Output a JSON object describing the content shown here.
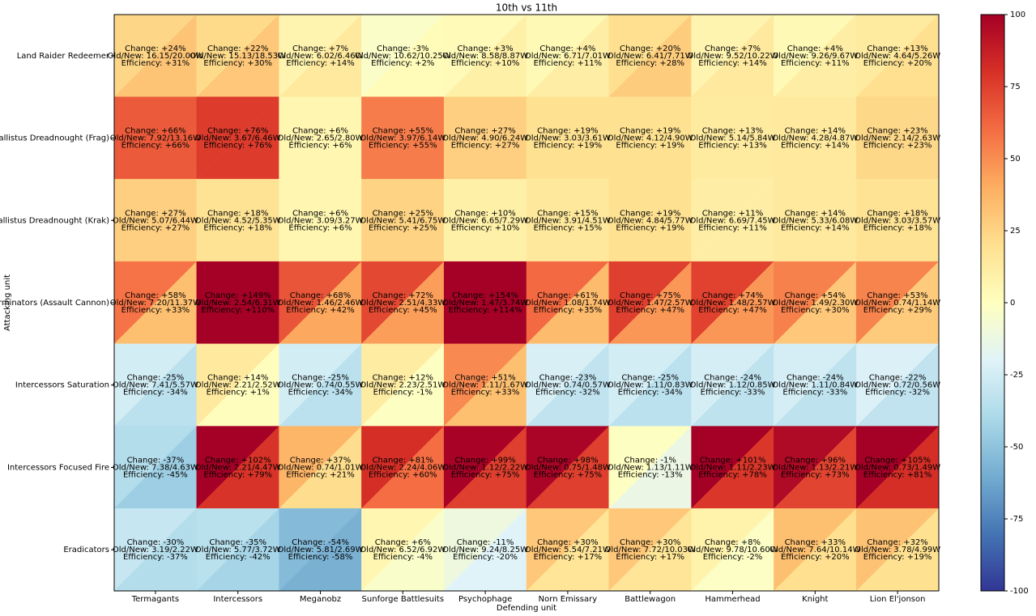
{
  "chart_data": {
    "type": "split-heatmap",
    "title": "10th vs 11th",
    "x_label": "Defending unit",
    "y_label": "Attacking unit",
    "colormap": "RdYlBu_r",
    "clim": [
      -100,
      100
    ],
    "cticks": [
      -100,
      -75,
      -50,
      -25,
      0,
      25,
      50,
      75,
      100
    ],
    "x_categories": [
      "Termagants",
      "Intercessors",
      "Meganobz",
      "Sunforge Battlesuits",
      "Psychophage",
      "Norn Emissary",
      "Battlewagon",
      "Hammerhead",
      "Knight",
      "Lion El'jonson"
    ],
    "y_categories": [
      "Land Raider Redeemer",
      "Ballistus Dreadnought (Frag)",
      "Ballistus Dreadnought (Krak)",
      "Terminators (Assault Cannon)",
      "Intercessors Saturation",
      "Intercessors Focused Fire",
      "Eradicators"
    ],
    "rows": [
      [
        {
          "change": 24,
          "change_label": "Change: +24%",
          "old_new": "Old/New: 16.15/20.00W",
          "efficiency": 31,
          "efficiency_label": "Efficiency: +31%"
        },
        {
          "change": 22,
          "change_label": "Change: +22%",
          "old_new": "Old/New: 15.13/18.53W",
          "efficiency": 30,
          "efficiency_label": "Efficiency: +30%"
        },
        {
          "change": 7,
          "change_label": "Change: +7%",
          "old_new": "Old/New: 6.02/6.46W",
          "efficiency": 14,
          "efficiency_label": "Efficiency: +14%"
        },
        {
          "change": -3,
          "change_label": "Change: -3%",
          "old_new": "Old/New: 10.62/10.25W",
          "efficiency": 2,
          "efficiency_label": "Efficiency: +2%"
        },
        {
          "change": 3,
          "change_label": "Change: +3%",
          "old_new": "Old/New: 8.58/8.87W",
          "efficiency": 10,
          "efficiency_label": "Efficiency: +10%"
        },
        {
          "change": 4,
          "change_label": "Change: +4%",
          "old_new": "Old/New: 6.71/7.01W",
          "efficiency": 11,
          "efficiency_label": "Efficiency: +11%"
        },
        {
          "change": 20,
          "change_label": "Change: +20%",
          "old_new": "Old/New: 6.41/7.71W",
          "efficiency": 28,
          "efficiency_label": "Efficiency: +28%"
        },
        {
          "change": 7,
          "change_label": "Change: +7%",
          "old_new": "Old/New: 9.52/10.22W",
          "efficiency": 14,
          "efficiency_label": "Efficiency: +14%"
        },
        {
          "change": 4,
          "change_label": "Change: +4%",
          "old_new": "Old/New: 9.26/9.67W",
          "efficiency": 11,
          "efficiency_label": "Efficiency: +11%"
        },
        {
          "change": 13,
          "change_label": "Change: +13%",
          "old_new": "Old/New: 4.64/5.26W",
          "efficiency": 20,
          "efficiency_label": "Efficiency: +20%"
        }
      ],
      [
        {
          "change": 66,
          "change_label": "Change: +66%",
          "old_new": "Old/New: 7.92/13.16W",
          "efficiency": 66,
          "efficiency_label": "Efficiency: +66%"
        },
        {
          "change": 76,
          "change_label": "Change: +76%",
          "old_new": "Old/New: 3.67/6.46W",
          "efficiency": 76,
          "efficiency_label": "Efficiency: +76%"
        },
        {
          "change": 6,
          "change_label": "Change: +6%",
          "old_new": "Old/New: 2.65/2.80W",
          "efficiency": 6,
          "efficiency_label": "Efficiency: +6%"
        },
        {
          "change": 55,
          "change_label": "Change: +55%",
          "old_new": "Old/New: 3.97/6.14W",
          "efficiency": 55,
          "efficiency_label": "Efficiency: +55%"
        },
        {
          "change": 27,
          "change_label": "Change: +27%",
          "old_new": "Old/New: 4.90/6.24W",
          "efficiency": 27,
          "efficiency_label": "Efficiency: +27%"
        },
        {
          "change": 19,
          "change_label": "Change: +19%",
          "old_new": "Old/New: 3.03/3.61W",
          "efficiency": 19,
          "efficiency_label": "Efficiency: +19%"
        },
        {
          "change": 19,
          "change_label": "Change: +19%",
          "old_new": "Old/New: 4.12/4.90W",
          "efficiency": 19,
          "efficiency_label": "Efficiency: +19%"
        },
        {
          "change": 13,
          "change_label": "Change: +13%",
          "old_new": "Old/New: 5.14/5.84W",
          "efficiency": 13,
          "efficiency_label": "Efficiency: +13%"
        },
        {
          "change": 14,
          "change_label": "Change: +14%",
          "old_new": "Old/New: 4.28/4.87W",
          "efficiency": 14,
          "efficiency_label": "Efficiency: +14%"
        },
        {
          "change": 23,
          "change_label": "Change: +23%",
          "old_new": "Old/New: 2.14/2.63W",
          "efficiency": 23,
          "efficiency_label": "Efficiency: +23%"
        }
      ],
      [
        {
          "change": 27,
          "change_label": "Change: +27%",
          "old_new": "Old/New: 5.07/6.44W",
          "efficiency": 27,
          "efficiency_label": "Efficiency: +27%"
        },
        {
          "change": 18,
          "change_label": "Change: +18%",
          "old_new": "Old/New: 4.52/5.35W",
          "efficiency": 18,
          "efficiency_label": "Efficiency: +18%"
        },
        {
          "change": 6,
          "change_label": "Change: +6%",
          "old_new": "Old/New: 3.09/3.27W",
          "efficiency": 6,
          "efficiency_label": "Efficiency: +6%"
        },
        {
          "change": 25,
          "change_label": "Change: +25%",
          "old_new": "Old/New: 5.41/6.75W",
          "efficiency": 25,
          "efficiency_label": "Efficiency: +25%"
        },
        {
          "change": 10,
          "change_label": "Change: +10%",
          "old_new": "Old/New: 6.65/7.29W",
          "efficiency": 10,
          "efficiency_label": "Efficiency: +10%"
        },
        {
          "change": 15,
          "change_label": "Change: +15%",
          "old_new": "Old/New: 3.91/4.51W",
          "efficiency": 15,
          "efficiency_label": "Efficiency: +15%"
        },
        {
          "change": 19,
          "change_label": "Change: +19%",
          "old_new": "Old/New: 4.84/5.77W",
          "efficiency": 19,
          "efficiency_label": "Efficiency: +19%"
        },
        {
          "change": 11,
          "change_label": "Change: +11%",
          "old_new": "Old/New: 6.69/7.45W",
          "efficiency": 11,
          "efficiency_label": "Efficiency: +11%"
        },
        {
          "change": 14,
          "change_label": "Change: +14%",
          "old_new": "Old/New: 5.33/6.08W",
          "efficiency": 14,
          "efficiency_label": "Efficiency: +14%"
        },
        {
          "change": 18,
          "change_label": "Change: +18%",
          "old_new": "Old/New: 3.03/3.57W",
          "efficiency": 18,
          "efficiency_label": "Efficiency: +18%"
        }
      ],
      [
        {
          "change": 58,
          "change_label": "Change: +58%",
          "old_new": "Old/New: 7.20/11.37W",
          "efficiency": 33,
          "efficiency_label": "Efficiency: +33%"
        },
        {
          "change": 149,
          "change_label": "Change: +149%",
          "old_new": "Old/New: 2.54/6.31W",
          "efficiency": 110,
          "efficiency_label": "Efficiency: +110%"
        },
        {
          "change": 68,
          "change_label": "Change: +68%",
          "old_new": "Old/New: 1.46/2.46W",
          "efficiency": 42,
          "efficiency_label": "Efficiency: +42%"
        },
        {
          "change": 72,
          "change_label": "Change: +72%",
          "old_new": "Old/New: 2.51/4.33W",
          "efficiency": 45,
          "efficiency_label": "Efficiency: +45%"
        },
        {
          "change": 154,
          "change_label": "Change: +154%",
          "old_new": "Old/New: 1.47/3.74W",
          "efficiency": 114,
          "efficiency_label": "Efficiency: +114%"
        },
        {
          "change": 61,
          "change_label": "Change: +61%",
          "old_new": "Old/New: 1.08/1.74W",
          "efficiency": 35,
          "efficiency_label": "Efficiency: +35%"
        },
        {
          "change": 75,
          "change_label": "Change: +75%",
          "old_new": "Old/New: 1.47/2.57W",
          "efficiency": 47,
          "efficiency_label": "Efficiency: +47%"
        },
        {
          "change": 74,
          "change_label": "Change: +74%",
          "old_new": "Old/New: 1.48/2.57W",
          "efficiency": 47,
          "efficiency_label": "Efficiency: +47%"
        },
        {
          "change": 54,
          "change_label": "Change: +54%",
          "old_new": "Old/New: 1.49/2.30W",
          "efficiency": 30,
          "efficiency_label": "Efficiency: +30%"
        },
        {
          "change": 53,
          "change_label": "Change: +53%",
          "old_new": "Old/New: 0.74/1.14W",
          "efficiency": 29,
          "efficiency_label": "Efficiency: +29%"
        }
      ],
      [
        {
          "change": -25,
          "change_label": "Change: -25%",
          "old_new": "Old/New: 7.41/5.57W",
          "efficiency": -34,
          "efficiency_label": "Efficiency: -34%"
        },
        {
          "change": 14,
          "change_label": "Change: +14%",
          "old_new": "Old/New: 2.21/2.52W",
          "efficiency": 1,
          "efficiency_label": "Efficiency: +1%"
        },
        {
          "change": -25,
          "change_label": "Change: -25%",
          "old_new": "Old/New: 0.74/0.55W",
          "efficiency": -34,
          "efficiency_label": "Efficiency: -34%"
        },
        {
          "change": 12,
          "change_label": "Change: +12%",
          "old_new": "Old/New: 2.23/2.51W",
          "efficiency": -1,
          "efficiency_label": "Efficiency: -1%"
        },
        {
          "change": 51,
          "change_label": "Change: +51%",
          "old_new": "Old/New: 1.11/1.67W",
          "efficiency": 33,
          "efficiency_label": "Efficiency: +33%"
        },
        {
          "change": -23,
          "change_label": "Change: -23%",
          "old_new": "Old/New: 0.74/0.57W",
          "efficiency": -32,
          "efficiency_label": "Efficiency: -32%"
        },
        {
          "change": -25,
          "change_label": "Change: -25%",
          "old_new": "Old/New: 1.11/0.83W",
          "efficiency": -34,
          "efficiency_label": "Efficiency: -34%"
        },
        {
          "change": -24,
          "change_label": "Change: -24%",
          "old_new": "Old/New: 1.12/0.85W",
          "efficiency": -33,
          "efficiency_label": "Efficiency: -33%"
        },
        {
          "change": -24,
          "change_label": "Change: -24%",
          "old_new": "Old/New: 1.11/0.84W",
          "efficiency": -33,
          "efficiency_label": "Efficiency: -33%"
        },
        {
          "change": -22,
          "change_label": "Change: -22%",
          "old_new": "Old/New: 0.72/0.56W",
          "efficiency": -32,
          "efficiency_label": "Efficiency: -32%"
        }
      ],
      [
        {
          "change": -37,
          "change_label": "Change: -37%",
          "old_new": "Old/New: 7.38/4.63W",
          "efficiency": -45,
          "efficiency_label": "Efficiency: -45%"
        },
        {
          "change": 102,
          "change_label": "Change: +102%",
          "old_new": "Old/New: 2.21/4.47W",
          "efficiency": 79,
          "efficiency_label": "Efficiency: +79%"
        },
        {
          "change": 37,
          "change_label": "Change: +37%",
          "old_new": "Old/New: 0.74/1.01W",
          "efficiency": 21,
          "efficiency_label": "Efficiency: +21%"
        },
        {
          "change": 81,
          "change_label": "Change: +81%",
          "old_new": "Old/New: 2.24/4.06W",
          "efficiency": 60,
          "efficiency_label": "Efficiency: +60%"
        },
        {
          "change": 99,
          "change_label": "Change: +99%",
          "old_new": "Old/New: 1.12/2.22W",
          "efficiency": 75,
          "efficiency_label": "Efficiency: +75%"
        },
        {
          "change": 98,
          "change_label": "Change: +98%",
          "old_new": "Old/New: 0.75/1.48W",
          "efficiency": 75,
          "efficiency_label": "Efficiency: +75%"
        },
        {
          "change": -1,
          "change_label": "Change: -1%",
          "old_new": "Old/New: 1.13/1.11W",
          "efficiency": -13,
          "efficiency_label": "Efficiency: -13%"
        },
        {
          "change": 101,
          "change_label": "Change: +101%",
          "old_new": "Old/New: 1.11/2.23W",
          "efficiency": 78,
          "efficiency_label": "Efficiency: +78%"
        },
        {
          "change": 96,
          "change_label": "Change: +96%",
          "old_new": "Old/New: 1.13/2.21W",
          "efficiency": 73,
          "efficiency_label": "Efficiency: +73%"
        },
        {
          "change": 105,
          "change_label": "Change: +105%",
          "old_new": "Old/New: 0.73/1.49W",
          "efficiency": 81,
          "efficiency_label": "Efficiency: +81%"
        }
      ],
      [
        {
          "change": -30,
          "change_label": "Change: -30%",
          "old_new": "Old/New: 3.19/2.22W",
          "efficiency": -37,
          "efficiency_label": "Efficiency: -37%"
        },
        {
          "change": -35,
          "change_label": "Change: -35%",
          "old_new": "Old/New: 5.77/3.72W",
          "efficiency": -42,
          "efficiency_label": "Efficiency: -42%"
        },
        {
          "change": -54,
          "change_label": "Change: -54%",
          "old_new": "Old/New: 5.81/2.69W",
          "efficiency": -58,
          "efficiency_label": "Efficiency: -58%"
        },
        {
          "change": 6,
          "change_label": "Change: +6%",
          "old_new": "Old/New: 6.52/6.92W",
          "efficiency": -4,
          "efficiency_label": "Efficiency: -4%"
        },
        {
          "change": -11,
          "change_label": "Change: -11%",
          "old_new": "Old/New: 9.24/8.25W",
          "efficiency": -20,
          "efficiency_label": "Efficiency: -20%"
        },
        {
          "change": 30,
          "change_label": "Change: +30%",
          "old_new": "Old/New: 5.54/7.21W",
          "efficiency": 17,
          "efficiency_label": "Efficiency: +17%"
        },
        {
          "change": 30,
          "change_label": "Change: +30%",
          "old_new": "Old/New: 7.72/10.03W",
          "efficiency": 17,
          "efficiency_label": "Efficiency: +17%"
        },
        {
          "change": 8,
          "change_label": "Change: +8%",
          "old_new": "Old/New: 9.78/10.60W",
          "efficiency": -2,
          "efficiency_label": "Efficiency: -2%"
        },
        {
          "change": 33,
          "change_label": "Change: +33%",
          "old_new": "Old/New: 7.64/10.14W",
          "efficiency": 20,
          "efficiency_label": "Efficiency: +20%"
        },
        {
          "change": 32,
          "change_label": "Change: +32%",
          "old_new": "Old/New: 3.78/4.99W",
          "efficiency": 19,
          "efficiency_label": "Efficiency: +19%"
        }
      ]
    ]
  }
}
